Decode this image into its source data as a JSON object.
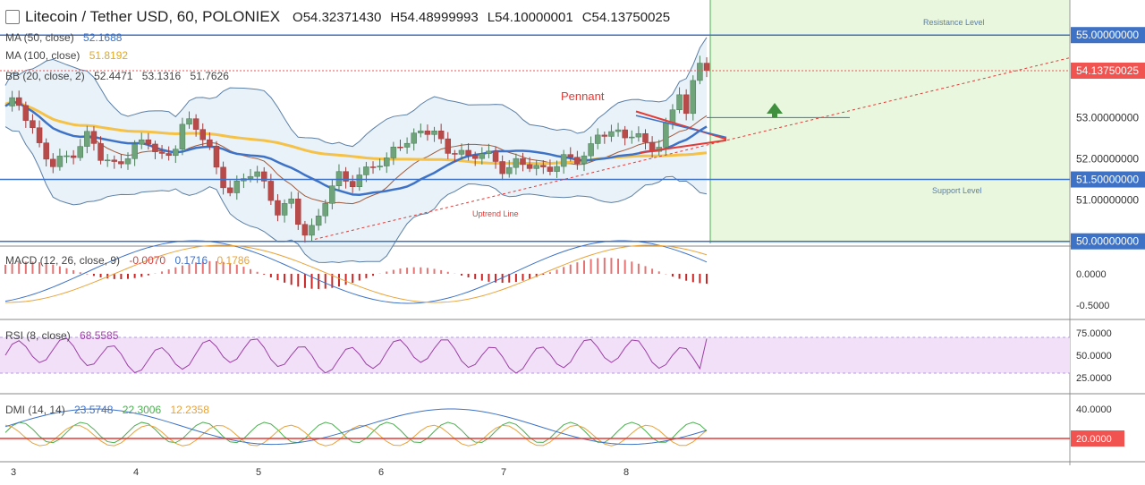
{
  "header": {
    "title": "Litecoin / Tether USD, 60, POLONIEX",
    "open": "O54.32371430",
    "high": "H54.48999993",
    "low": "L54.10000001",
    "close": "C54.13750025"
  },
  "indicators": {
    "ma50": {
      "label": "MA (50, close)",
      "value": "52.1688",
      "color": "#3d72c7"
    },
    "ma100": {
      "label": "MA (100, close)",
      "value": "51.8192",
      "color": "#f5c146"
    },
    "bb": {
      "label": "BB (20, close, 2)",
      "v1": "52.4471",
      "v2": "53.1316",
      "v3": "51.7626"
    }
  },
  "annotations": {
    "resistance": "Resistance Level",
    "support": "Support Level",
    "pennant": "Pennant",
    "uptrend": "Uptrend Line"
  },
  "price_axis": {
    "ticks": [
      "53.00000000",
      "52.00000000",
      "51.00000000"
    ],
    "levels": [
      "55.00000000",
      "51.50000000",
      "50.00000000"
    ],
    "last_price": "54.13750025",
    "last_price_color": "#f05350",
    "level_color": "#3d72c7"
  },
  "macd": {
    "label": "MACD (12, 26, close, 9)",
    "v1": "-0.0070",
    "v2": "0.1716",
    "v3": "0.1786",
    "ticks": [
      "0.0000",
      "-0.5000"
    ]
  },
  "rsi": {
    "label": "RSI (8, close)",
    "value": "68.5585",
    "ticks": [
      "75.0000",
      "50.0000",
      "25.0000"
    ]
  },
  "dmi": {
    "label": "DMI (14, 14)",
    "v1": "23.5748",
    "v2": "22.3006",
    "v3": "12.2358",
    "ticks": [
      "40.0000"
    ],
    "threshold": "20.0000"
  },
  "time_axis": [
    "3",
    "4",
    "5",
    "6",
    "7",
    "8"
  ],
  "chart_data": {
    "type": "candlestick",
    "title": "Litecoin / Tether USD, 60, POLONIEX",
    "x_ticks": [
      "3",
      "4",
      "5",
      "6",
      "7",
      "8"
    ],
    "ylim": [
      49.95,
      55.2
    ],
    "close_series_approx": [
      53.2,
      53.4,
      53.0,
      52.2,
      51.8,
      52.0,
      52.3,
      52.6,
      52.0,
      51.8,
      52.1,
      52.3,
      52.4,
      52.0,
      52.2,
      52.9,
      52.7,
      52.4,
      51.6,
      51.2,
      51.4,
      51.8,
      51.3,
      50.7,
      50.9,
      50.2,
      50.4,
      51.1,
      51.5,
      51.4,
      51.7,
      51.9,
      51.8,
      52.4,
      52.5,
      52.7,
      52.6,
      52.2,
      52.3,
      52.0,
      52.1,
      52.0,
      51.8,
      51.9,
      51.8,
      51.7,
      51.9,
      52.0,
      51.9,
      52.1,
      52.8,
      52.6,
      52.5,
      52.6,
      52.4,
      52.3,
      53.0,
      53.9,
      54.3,
      54.14
    ],
    "levels": {
      "resistance": 55.0,
      "support": 51.5,
      "floor": 50.0,
      "breakout": 53.0
    },
    "macd": {
      "macd": -0.007,
      "signal": 0.1716,
      "histogram": 0.1786
    },
    "rsi_last": 68.5585,
    "dmi": {
      "plus_di": 23.5748,
      "minus_di": 22.3006,
      "adx": 12.2358
    }
  }
}
